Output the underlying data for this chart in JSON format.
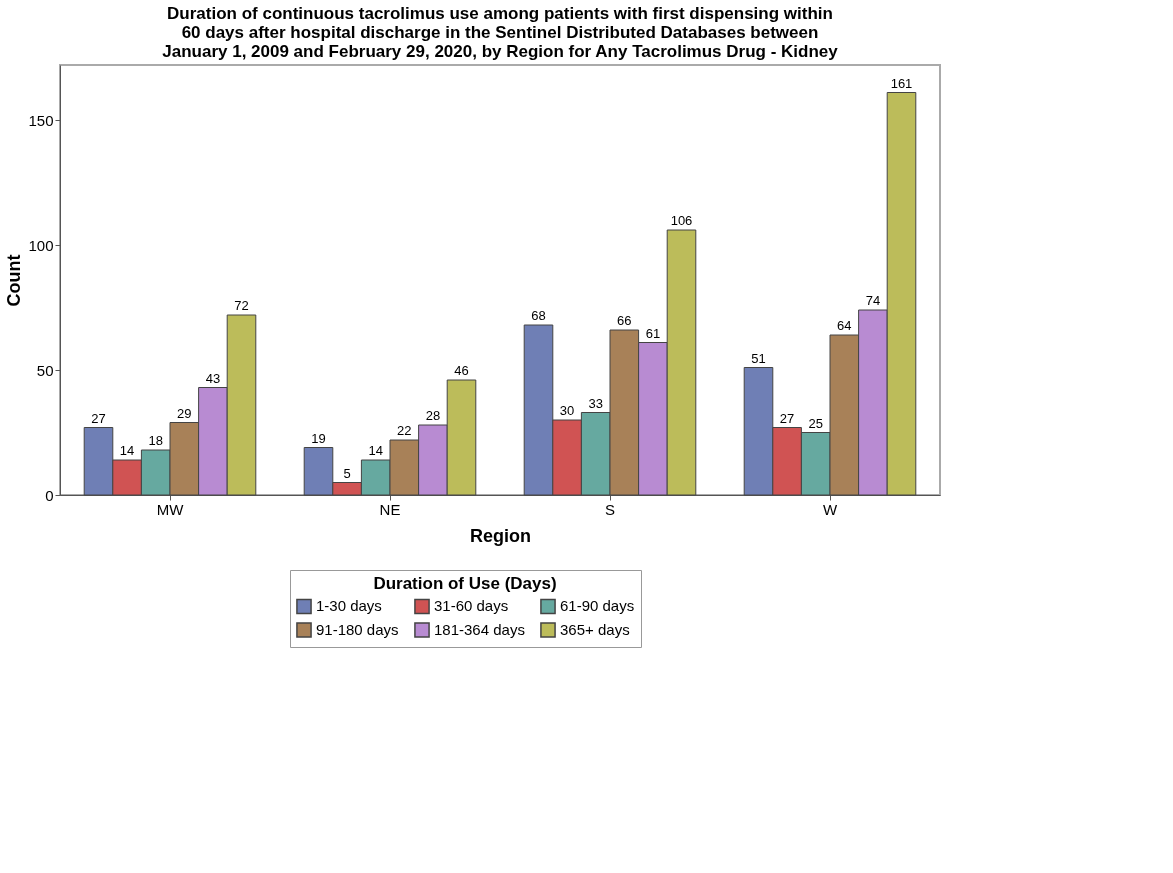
{
  "chart_data": {
    "type": "bar",
    "title": "Duration of continuous tacrolimus use among patients with first dispensing within 60 days after hospital discharge in the Sentinel Distributed Databases between January 1, 2009 and February 29, 2020, by Region for Any Tacrolimus Drug - Kidney",
    "xlabel": "Region",
    "ylabel": "Count",
    "legend_title": "Duration of Use (Days)",
    "categories": [
      "MW",
      "NE",
      "S",
      "W"
    ],
    "series": [
      {
        "name": "1-30 days",
        "color": "#6f7fb5",
        "values": [
          27,
          19,
          68,
          51
        ]
      },
      {
        "name": "31-60 days",
        "color": "#d05353",
        "values": [
          14,
          5,
          30,
          27
        ]
      },
      {
        "name": "61-90 days",
        "color": "#66a9a0",
        "values": [
          18,
          14,
          33,
          25
        ]
      },
      {
        "name": "91-180 days",
        "color": "#a88158",
        "values": [
          29,
          22,
          66,
          64
        ]
      },
      {
        "name": "181-364 days",
        "color": "#b88bd2",
        "values": [
          43,
          28,
          61,
          74
        ]
      },
      {
        "name": "365+ days",
        "color": "#bcbc5a",
        "values": [
          72,
          46,
          106,
          161
        ]
      }
    ],
    "ylim": [
      0,
      172
    ],
    "yticks": [
      0,
      50,
      100,
      150
    ],
    "grid": false,
    "legend": "bottom",
    "data_labels": true
  }
}
